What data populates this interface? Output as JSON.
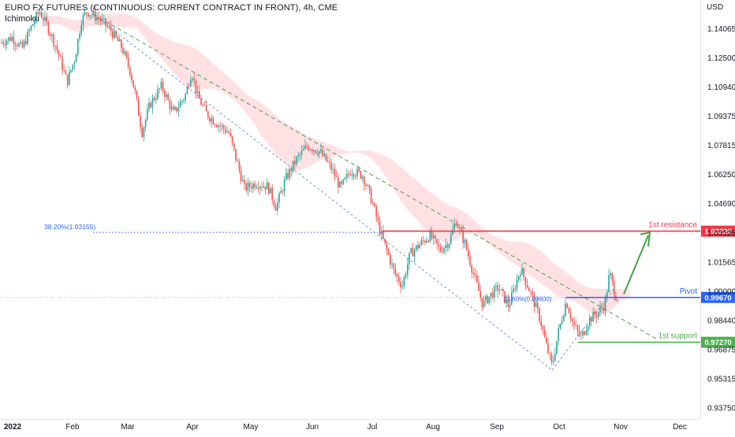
{
  "header": {
    "title": "EURO FX FUTURES (CONTINUOUS: CURRENT CONTRACT IN FRONT), 4h, CME",
    "indicator": "Ichimoku"
  },
  "colors": {
    "up": "#26a69a",
    "down": "#ef5350",
    "cloud_bull": "#c8e6c9",
    "cloud_bear": "#ffcdd2",
    "resistance": "#f23645",
    "pivot": "#2962ff",
    "support": "#4caf50",
    "fib": "#2962ff",
    "trend_green": "#43a047",
    "trend_blue": "#5b8def"
  },
  "chart_data": {
    "type": "candlestick",
    "title": "EURO FX FUTURES (CONTINUOUS: CURRENT CONTRACT IN FRONT), 4h, CME",
    "currency": "USD",
    "y_ticks": [
      1.14065,
      1.125,
      1.1094,
      1.09375,
      1.07815,
      1.0625,
      1.0469,
      1.03125,
      1.01565,
      1.0,
      0.9844,
      0.96875,
      0.95315,
      0.9375
    ],
    "y_range": [
      0.9325,
      1.156
    ],
    "x_labels": [
      "2022",
      "Feb",
      "Mar",
      "Apr",
      "May",
      "Jun",
      "Jul",
      "Aug",
      "Sep",
      "Oct",
      "Nov",
      "Dec"
    ],
    "price_path": [
      {
        "x": 0,
        "p": 1.133
      },
      {
        "x": 15,
        "p": 1.136
      },
      {
        "x": 28,
        "p": 1.13
      },
      {
        "x": 40,
        "p": 1.142
      },
      {
        "x": 50,
        "p": 1.15
      },
      {
        "x": 60,
        "p": 1.142
      },
      {
        "x": 72,
        "p": 1.13
      },
      {
        "x": 85,
        "p": 1.112
      },
      {
        "x": 95,
        "p": 1.125
      },
      {
        "x": 103,
        "p": 1.145
      },
      {
        "x": 110,
        "p": 1.15
      },
      {
        "x": 125,
        "p": 1.146
      },
      {
        "x": 140,
        "p": 1.14
      },
      {
        "x": 155,
        "p": 1.13
      },
      {
        "x": 165,
        "p": 1.118
      },
      {
        "x": 172,
        "p": 1.105
      },
      {
        "x": 180,
        "p": 1.085
      },
      {
        "x": 190,
        "p": 1.1
      },
      {
        "x": 205,
        "p": 1.11
      },
      {
        "x": 220,
        "p": 1.095
      },
      {
        "x": 235,
        "p": 1.105
      },
      {
        "x": 243,
        "p": 1.118
      },
      {
        "x": 250,
        "p": 1.105
      },
      {
        "x": 262,
        "p": 1.095
      },
      {
        "x": 275,
        "p": 1.09
      },
      {
        "x": 290,
        "p": 1.085
      },
      {
        "x": 300,
        "p": 1.07
      },
      {
        "x": 310,
        "p": 1.055
      },
      {
        "x": 325,
        "p": 1.058
      },
      {
        "x": 340,
        "p": 1.056
      },
      {
        "x": 350,
        "p": 1.045
      },
      {
        "x": 362,
        "p": 1.06
      },
      {
        "x": 375,
        "p": 1.07
      },
      {
        "x": 390,
        "p": 1.078
      },
      {
        "x": 405,
        "p": 1.075
      },
      {
        "x": 420,
        "p": 1.066
      },
      {
        "x": 432,
        "p": 1.055
      },
      {
        "x": 445,
        "p": 1.065
      },
      {
        "x": 460,
        "p": 1.062
      },
      {
        "x": 472,
        "p": 1.048
      },
      {
        "x": 482,
        "p": 1.032
      },
      {
        "x": 492,
        "p": 1.02
      },
      {
        "x": 500,
        "p": 1.01
      },
      {
        "x": 510,
        "p": 1.003
      },
      {
        "x": 520,
        "p": 1.02
      },
      {
        "x": 532,
        "p": 1.025
      },
      {
        "x": 545,
        "p": 1.03
      },
      {
        "x": 558,
        "p": 1.022
      },
      {
        "x": 570,
        "p": 1.027
      },
      {
        "x": 578,
        "p": 1.038
      },
      {
        "x": 590,
        "p": 1.025
      },
      {
        "x": 600,
        "p": 1.01
      },
      {
        "x": 612,
        "p": 0.993
      },
      {
        "x": 622,
        "p": 0.998
      },
      {
        "x": 632,
        "p": 1.002
      },
      {
        "x": 645,
        "p": 0.992
      },
      {
        "x": 660,
        "p": 1.012
      },
      {
        "x": 672,
        "p": 1.0
      },
      {
        "x": 685,
        "p": 0.985
      },
      {
        "x": 692,
        "p": 0.972
      },
      {
        "x": 700,
        "p": 0.96
      },
      {
        "x": 708,
        "p": 0.978
      },
      {
        "x": 718,
        "p": 0.995
      },
      {
        "x": 727,
        "p": 0.982
      },
      {
        "x": 737,
        "p": 0.975
      },
      {
        "x": 747,
        "p": 0.985
      },
      {
        "x": 757,
        "p": 0.988
      },
      {
        "x": 767,
        "p": 0.993
      },
      {
        "x": 773,
        "p": 1.01
      },
      {
        "x": 780,
        "p": 0.998
      },
      {
        "x": 785,
        "p": 0.996
      }
    ],
    "fib_label": "38.20%(1.03155)",
    "fib_level": 1.03155,
    "fib_label2": "23.60%(0.99600)",
    "fib_level2": 0.996,
    "levels": [
      {
        "name": "1st resistance",
        "value": 1.0322,
        "label": "1.03220"
      },
      {
        "name": "Pivot",
        "value": 0.9967,
        "label": "0.99670"
      },
      {
        "name": "1st support",
        "value": 0.9727,
        "label": "0.97270"
      }
    ],
    "current_price": 0.9975
  }
}
